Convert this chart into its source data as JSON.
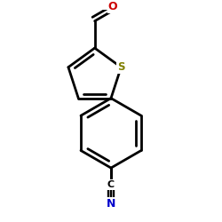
{
  "bg_color": "#ffffff",
  "bond_color": "#000000",
  "bond_lw": 2.0,
  "S_color": "#808000",
  "O_color": "#cc0000",
  "N_color": "#0000cc",
  "C_color": "#000000",
  "figsize": [
    2.5,
    2.5
  ],
  "dpi": 100,
  "xlim": [
    0.05,
    0.95
  ],
  "ylim": [
    0.03,
    0.97
  ]
}
